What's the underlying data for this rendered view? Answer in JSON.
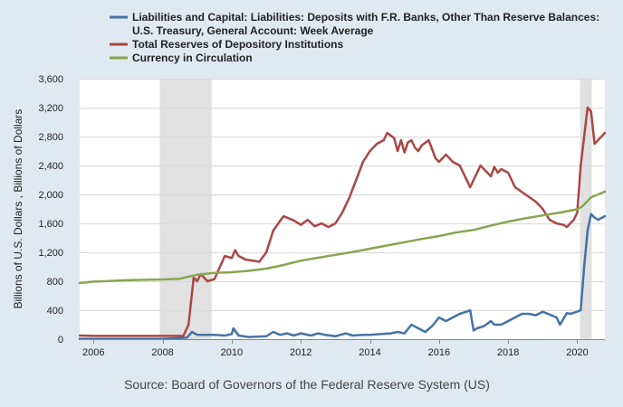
{
  "chart_data": {
    "type": "line",
    "ylabel": "Billions of U.S. Dollars , Billions of Dollars",
    "source": "Source: Board of Governors of the Federal Reserve System (US)",
    "ylim": [
      0,
      3600
    ],
    "xlim": [
      2005.6,
      2020.8
    ],
    "y_ticks": [
      0,
      400,
      800,
      1200,
      1600,
      2000,
      2400,
      2800,
      3200,
      3600
    ],
    "y_tick_labels": [
      "0",
      "400",
      "800",
      "1,200",
      "1,600",
      "2,000",
      "2,400",
      "2,800",
      "3,200",
      "3,600"
    ],
    "x_ticks": [
      2006,
      2008,
      2010,
      2012,
      2014,
      2016,
      2018,
      2020
    ],
    "x_tick_labels": [
      "2006",
      "2008",
      "2010",
      "2012",
      "2014",
      "2016",
      "2018",
      "2020"
    ],
    "grid": true,
    "legend_position": "top",
    "recessions": [
      {
        "start": 2007.92,
        "end": 2009.42
      },
      {
        "start": 2020.08,
        "end": 2020.42
      }
    ],
    "series": [
      {
        "name": "Liabilities and Capital: Liabilities: Deposits with F.R. Banks, Other Than Reserve Balances: U.S. Treasury, General Account: Week Average",
        "color": "#4572a7",
        "x": [
          2005.6,
          2006,
          2007,
          2008,
          2008.7,
          2008.85,
          2009,
          2009.2,
          2009.5,
          2009.8,
          2010,
          2010.05,
          2010.2,
          2010.5,
          2011,
          2011.2,
          2011.4,
          2011.6,
          2011.8,
          2012,
          2012.3,
          2012.5,
          2012.7,
          2013,
          2013.3,
          2013.5,
          2013.8,
          2014,
          2014.3,
          2014.6,
          2014.8,
          2015,
          2015.2,
          2015.4,
          2015.6,
          2015.8,
          2016,
          2016.2,
          2016.4,
          2016.6,
          2016.8,
          2016.9,
          2017,
          2017.1,
          2017.3,
          2017.5,
          2017.6,
          2017.8,
          2018,
          2018.2,
          2018.4,
          2018.6,
          2018.8,
          2019,
          2019.2,
          2019.4,
          2019.5,
          2019.7,
          2019.8,
          2020,
          2020.1,
          2020.2,
          2020.3,
          2020.4,
          2020.5,
          2020.6,
          2020.8
        ],
        "values": [
          5,
          5,
          5,
          5,
          20,
          100,
          60,
          60,
          60,
          50,
          70,
          150,
          50,
          30,
          40,
          100,
          60,
          80,
          50,
          80,
          50,
          80,
          60,
          40,
          80,
          50,
          60,
          60,
          70,
          80,
          100,
          80,
          200,
          150,
          100,
          180,
          300,
          250,
          300,
          350,
          380,
          400,
          120,
          150,
          180,
          250,
          200,
          200,
          250,
          300,
          350,
          350,
          330,
          380,
          340,
          300,
          200,
          360,
          350,
          380,
          400,
          1000,
          1500,
          1730,
          1680,
          1650,
          1700
        ]
      },
      {
        "name": "Total Reserves of Depository Institutions",
        "color": "#aa4643",
        "x": [
          2005.6,
          2006,
          2007,
          2008.6,
          2008.75,
          2008.9,
          2009,
          2009.1,
          2009.2,
          2009.3,
          2009.5,
          2009.8,
          2010,
          2010.1,
          2010.2,
          2010.4,
          2010.8,
          2011,
          2011.2,
          2011.5,
          2011.8,
          2012,
          2012.2,
          2012.4,
          2012.6,
          2012.8,
          2013,
          2013.2,
          2013.4,
          2013.6,
          2013.8,
          2014,
          2014.2,
          2014.4,
          2014.5,
          2014.7,
          2014.8,
          2014.9,
          2015,
          2015.1,
          2015.2,
          2015.3,
          2015.4,
          2015.5,
          2015.7,
          2015.9,
          2016,
          2016.2,
          2016.4,
          2016.6,
          2016.7,
          2016.8,
          2016.9,
          2017,
          2017.2,
          2017.4,
          2017.5,
          2017.6,
          2017.7,
          2017.8,
          2018,
          2018.2,
          2018.5,
          2018.8,
          2019,
          2019.2,
          2019.4,
          2019.6,
          2019.7,
          2019.8,
          2019.9,
          2020,
          2020.1,
          2020.15,
          2020.25,
          2020.3,
          2020.4,
          2020.5,
          2020.6,
          2020.8
        ],
        "values": [
          50,
          45,
          45,
          45,
          200,
          850,
          800,
          900,
          850,
          800,
          830,
          1150,
          1120,
          1230,
          1150,
          1100,
          1070,
          1200,
          1500,
          1700,
          1640,
          1580,
          1650,
          1560,
          1600,
          1550,
          1600,
          1750,
          1950,
          2200,
          2450,
          2600,
          2700,
          2750,
          2850,
          2780,
          2600,
          2750,
          2580,
          2720,
          2750,
          2650,
          2600,
          2680,
          2750,
          2500,
          2450,
          2550,
          2450,
          2400,
          2300,
          2200,
          2100,
          2200,
          2400,
          2300,
          2250,
          2380,
          2300,
          2350,
          2300,
          2100,
          2000,
          1900,
          1800,
          1650,
          1600,
          1580,
          1550,
          1600,
          1650,
          1750,
          2400,
          2600,
          3000,
          3200,
          3150,
          2700,
          2750,
          2850
        ]
      },
      {
        "name": "Currency in Circulation",
        "color": "#89a54e",
        "x": [
          2005.6,
          2006,
          2007,
          2008,
          2008.5,
          2009,
          2009.5,
          2010,
          2010.5,
          2011,
          2011.5,
          2012,
          2012.5,
          2013,
          2013.5,
          2014,
          2014.5,
          2015,
          2015.5,
          2016,
          2016.5,
          2017,
          2017.5,
          2018,
          2018.5,
          2019,
          2019.5,
          2020,
          2020.1,
          2020.2,
          2020.4,
          2020.6,
          2020.8
        ],
        "values": [
          775,
          795,
          815,
          825,
          835,
          890,
          915,
          925,
          945,
          975,
          1025,
          1085,
          1125,
          1165,
          1205,
          1250,
          1295,
          1340,
          1385,
          1425,
          1475,
          1510,
          1570,
          1625,
          1670,
          1710,
          1750,
          1795,
          1820,
          1860,
          1960,
          2000,
          2040
        ]
      }
    ]
  }
}
